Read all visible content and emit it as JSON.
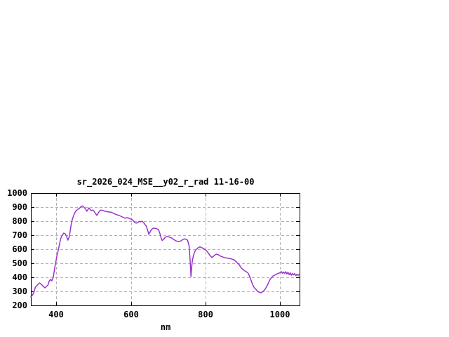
{
  "page": {
    "background": "#ffffff"
  },
  "chart_data": {
    "type": "line",
    "title": "sr_2026_024_MSE__y02_r_rad 11-16-00",
    "xlabel": "nm",
    "ylabel": "",
    "xlim": [
      332,
      1052
    ],
    "ylim": [
      200,
      1000
    ],
    "xticks": [
      400,
      600,
      800,
      1000
    ],
    "yticks": [
      200,
      300,
      400,
      500,
      600,
      700,
      800,
      900,
      1000
    ],
    "grid": true,
    "legend_position": "none",
    "line_color": "#9933cc",
    "grid_color": "#b0b0b0",
    "axis_color": "#000000",
    "series": [
      {
        "name": "sr_2026_024_MSE__y02_r_rad",
        "points": [
          [
            332,
            260
          ],
          [
            336,
            272
          ],
          [
            340,
            292
          ],
          [
            344,
            330
          ],
          [
            350,
            347
          ],
          [
            355,
            360
          ],
          [
            358,
            355
          ],
          [
            362,
            345
          ],
          [
            366,
            333
          ],
          [
            370,
            325
          ],
          [
            374,
            335
          ],
          [
            378,
            347
          ],
          [
            381,
            373
          ],
          [
            385,
            385
          ],
          [
            388,
            375
          ],
          [
            392,
            400
          ],
          [
            394,
            435
          ],
          [
            396,
            467
          ],
          [
            398,
            497
          ],
          [
            400,
            527
          ],
          [
            402,
            555
          ],
          [
            404,
            577
          ],
          [
            406,
            602
          ],
          [
            408,
            627
          ],
          [
            410,
            652
          ],
          [
            412,
            675
          ],
          [
            414,
            690
          ],
          [
            417,
            702
          ],
          [
            420,
            715
          ],
          [
            424,
            710
          ],
          [
            428,
            690
          ],
          [
            431,
            665
          ],
          [
            434,
            682
          ],
          [
            436,
            705
          ],
          [
            438,
            742
          ],
          [
            440,
            777
          ],
          [
            443,
            812
          ],
          [
            447,
            842
          ],
          [
            451,
            866
          ],
          [
            456,
            881
          ],
          [
            462,
            891
          ],
          [
            465,
            900
          ],
          [
            468,
            906
          ],
          [
            470,
            908
          ],
          [
            473,
            903
          ],
          [
            476,
            894
          ],
          [
            479,
            884
          ],
          [
            482,
            871
          ],
          [
            485,
            882
          ],
          [
            487,
            894
          ],
          [
            489,
            889
          ],
          [
            491,
            884
          ],
          [
            494,
            875
          ],
          [
            498,
            880
          ],
          [
            502,
            869
          ],
          [
            505,
            855
          ],
          [
            509,
            841
          ],
          [
            513,
            860
          ],
          [
            517,
            875
          ],
          [
            520,
            879
          ],
          [
            526,
            875
          ],
          [
            532,
            870
          ],
          [
            539,
            866
          ],
          [
            547,
            864
          ],
          [
            554,
            855
          ],
          [
            562,
            846
          ],
          [
            569,
            840
          ],
          [
            577,
            830
          ],
          [
            584,
            821
          ],
          [
            590,
            825
          ],
          [
            596,
            820
          ],
          [
            600,
            815
          ],
          [
            604,
            809
          ],
          [
            608,
            799
          ],
          [
            611,
            790
          ],
          [
            615,
            786
          ],
          [
            619,
            791
          ],
          [
            622,
            799
          ],
          [
            626,
            795
          ],
          [
            630,
            800
          ],
          [
            634,
            790
          ],
          [
            638,
            776
          ],
          [
            641,
            765
          ],
          [
            645,
            735
          ],
          [
            648,
            706
          ],
          [
            651,
            720
          ],
          [
            655,
            740
          ],
          [
            660,
            750
          ],
          [
            665,
            749
          ],
          [
            670,
            745
          ],
          [
            674,
            739
          ],
          [
            678,
            710
          ],
          [
            681,
            681
          ],
          [
            684,
            662
          ],
          [
            688,
            671
          ],
          [
            692,
            685
          ],
          [
            696,
            690
          ],
          [
            701,
            689
          ],
          [
            705,
            684
          ],
          [
            710,
            679
          ],
          [
            715,
            669
          ],
          [
            720,
            661
          ],
          [
            725,
            656
          ],
          [
            730,
            655
          ],
          [
            735,
            661
          ],
          [
            739,
            669
          ],
          [
            744,
            674
          ],
          [
            748,
            670
          ],
          [
            752,
            664
          ],
          [
            756,
            625
          ],
          [
            758,
            550
          ],
          [
            760,
            460
          ],
          [
            761,
            405
          ],
          [
            763,
            478
          ],
          [
            765,
            524
          ],
          [
            768,
            558
          ],
          [
            772,
            589
          ],
          [
            776,
            601
          ],
          [
            780,
            610
          ],
          [
            785,
            617
          ],
          [
            790,
            611
          ],
          [
            795,
            605
          ],
          [
            800,
            596
          ],
          [
            804,
            586
          ],
          [
            808,
            571
          ],
          [
            812,
            556
          ],
          [
            817,
            541
          ],
          [
            821,
            549
          ],
          [
            825,
            559
          ],
          [
            829,
            565
          ],
          [
            834,
            561
          ],
          [
            840,
            551
          ],
          [
            845,
            546
          ],
          [
            850,
            541
          ],
          [
            855,
            538
          ],
          [
            860,
            536
          ],
          [
            866,
            534
          ],
          [
            871,
            529
          ],
          [
            877,
            524
          ],
          [
            884,
            506
          ],
          [
            890,
            491
          ],
          [
            896,
            466
          ],
          [
            903,
            451
          ],
          [
            908,
            441
          ],
          [
            912,
            436
          ],
          [
            915,
            426
          ],
          [
            919,
            401
          ],
          [
            923,
            371
          ],
          [
            927,
            344
          ],
          [
            931,
            325
          ],
          [
            935,
            314
          ],
          [
            939,
            302
          ],
          [
            943,
            295
          ],
          [
            947,
            290
          ],
          [
            951,
            294
          ],
          [
            955,
            301
          ],
          [
            958,
            310
          ],
          [
            962,
            325
          ],
          [
            966,
            345
          ],
          [
            970,
            369
          ],
          [
            973,
            385
          ],
          [
            977,
            399
          ],
          [
            981,
            409
          ],
          [
            985,
            415
          ],
          [
            988,
            420
          ],
          [
            992,
            425
          ],
          [
            996,
            429
          ],
          [
            1000,
            433
          ],
          [
            1003,
            441
          ],
          [
            1006,
            429
          ],
          [
            1009,
            438
          ],
          [
            1012,
            427
          ],
          [
            1015,
            440
          ],
          [
            1018,
            424
          ],
          [
            1021,
            436
          ],
          [
            1024,
            419
          ],
          [
            1027,
            432
          ],
          [
            1030,
            415
          ],
          [
            1033,
            428
          ],
          [
            1036,
            418
          ],
          [
            1039,
            426
          ],
          [
            1042,
            412
          ],
          [
            1045,
            422
          ],
          [
            1048,
            414
          ],
          [
            1051,
            420
          ]
        ]
      }
    ]
  }
}
